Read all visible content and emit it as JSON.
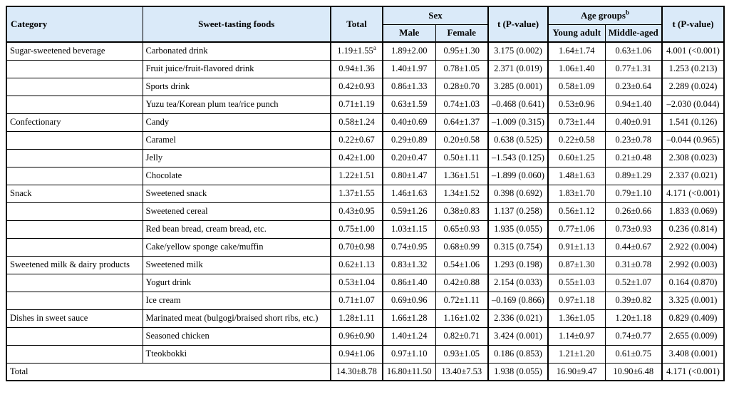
{
  "colors": {
    "header_bg": "#daeaf9",
    "border": "#000000",
    "text": "#000000"
  },
  "table": {
    "header": {
      "category": "Category",
      "foods": "Sweet-tasting foods",
      "total": "Total",
      "sex": "Sex",
      "male": "Male",
      "female": "Female",
      "t_sex": "t (P-value)",
      "age_groups": "Age groups",
      "age_groups_sup": "b",
      "young": "Young adult",
      "middle": "Middle-aged",
      "t_age": "t (P-value)"
    },
    "rows": [
      {
        "category": "Sugar-sweetened beverage",
        "food": "Carbonated drink",
        "total": "1.19±1.55",
        "total_sup": "a",
        "male": "1.89±2.00",
        "female": "0.95±1.30",
        "t_sex": "3.175 (0.002)",
        "young": "1.64±1.74",
        "middle": "0.63±1.06",
        "t_age": "4.001 (<0.001)"
      },
      {
        "category": "",
        "food": "Fruit juice/fruit-flavored drink",
        "total": "0.94±1.36",
        "male": "1.40±1.97",
        "female": "0.78±1.05",
        "t_sex": "2.371 (0.019)",
        "young": "1.06±1.40",
        "middle": "0.77±1.31",
        "t_age": "1.253 (0.213)"
      },
      {
        "category": "",
        "food": "Sports drink",
        "total": "0.42±0.93",
        "male": "0.86±1.33",
        "female": "0.28±0.70",
        "t_sex": "3.285 (0.001)",
        "young": "0.58±1.09",
        "middle": "0.23±0.64",
        "t_age": "2.289 (0.024)"
      },
      {
        "category": "",
        "food": "Yuzu tea/Korean plum tea/rice punch",
        "total": "0.71±1.19",
        "male": "0.63±1.59",
        "female": "0.74±1.03",
        "t_sex": "–0.468 (0.641)",
        "young": "0.53±0.96",
        "middle": "0.94±1.40",
        "t_age": "–2.030 (0.044)"
      },
      {
        "category": "Confectionary",
        "food": "Candy",
        "total": "0.58±1.24",
        "male": "0.40±0.69",
        "female": "0.64±1.37",
        "t_sex": "–1.009 (0.315)",
        "young": "0.73±1.44",
        "middle": "0.40±0.91",
        "t_age": "1.541 (0.126)"
      },
      {
        "category": "",
        "food": "Caramel",
        "total": "0.22±0.67",
        "male": "0.29±0.89",
        "female": "0.20±0.58",
        "t_sex": "0.638 (0.525)",
        "young": "0.22±0.58",
        "middle": "0.23±0.78",
        "t_age": "–0.044 (0.965)"
      },
      {
        "category": "",
        "food": "Jelly",
        "total": "0.42±1.00",
        "male": "0.20±0.47",
        "female": "0.50±1.11",
        "t_sex": "–1.543 (0.125)",
        "young": "0.60±1.25",
        "middle": "0.21±0.48",
        "t_age": "2.308 (0.023)"
      },
      {
        "category": "",
        "food": "Chocolate",
        "total": "1.22±1.51",
        "male": "0.80±1.47",
        "female": "1.36±1.51",
        "t_sex": "–1.899 (0.060)",
        "young": "1.48±1.63",
        "middle": "0.89±1.29",
        "t_age": "2.337 (0.021)"
      },
      {
        "category": "Snack",
        "food": "Sweetened snack",
        "total": "1.37±1.55",
        "male": "1.46±1.63",
        "female": "1.34±1.52",
        "t_sex": "0.398 (0.692)",
        "young": "1.83±1.70",
        "middle": "0.79±1.10",
        "t_age": "4.171 (<0.001)"
      },
      {
        "category": "",
        "food": "Sweetened cereal",
        "total": "0.43±0.95",
        "male": "0.59±1.26",
        "female": "0.38±0.83",
        "t_sex": "1.137 (0.258)",
        "young": "0.56±1.12",
        "middle": "0.26±0.66",
        "t_age": "1.833 (0.069)"
      },
      {
        "category": "",
        "food": "Red bean bread, cream bread, etc.",
        "total": "0.75±1.00",
        "male": "1.03±1.15",
        "female": "0.65±0.93",
        "t_sex": "1.935 (0.055)",
        "young": "0.77±1.06",
        "middle": "0.73±0.93",
        "t_age": "0.236 (0.814)"
      },
      {
        "category": "",
        "food": "Cake/yellow sponge cake/muffin",
        "total": "0.70±0.98",
        "male": "0.74±0.95",
        "female": "0.68±0.99",
        "t_sex": "0.315 (0.754)",
        "young": "0.91±1.13",
        "middle": "0.44±0.67",
        "t_age": "2.922 (0.004)"
      },
      {
        "category": "Sweetened milk & dairy products",
        "food": "Sweetened milk",
        "total": "0.62±1.13",
        "male": "0.83±1.32",
        "female": "0.54±1.06",
        "t_sex": "1.293 (0.198)",
        "young": "0.87±1.30",
        "middle": "0.31±0.78",
        "t_age": "2.992 (0.003)"
      },
      {
        "category": "",
        "food": "Yogurt drink",
        "total": "0.53±1.04",
        "male": "0.86±1.40",
        "female": "0.42±0.88",
        "t_sex": "2.154 (0.033)",
        "young": "0.55±1.03",
        "middle": "0.52±1.07",
        "t_age": "0.164 (0.870)"
      },
      {
        "category": "",
        "food": "Ice cream",
        "total": "0.71±1.07",
        "male": "0.69±0.96",
        "female": "0.72±1.11",
        "t_sex": "–0.169 (0.866)",
        "young": "0.97±1.18",
        "middle": "0.39±0.82",
        "t_age": "3.325 (0.001)"
      },
      {
        "category": "Dishes in sweet sauce",
        "food": "Marinated meat (bulgogi/braised short ribs, etc.)",
        "total": "1.28±1.11",
        "male": "1.66±1.28",
        "female": "1.16±1.02",
        "t_sex": "2.336 (0.021)",
        "young": "1.36±1.05",
        "middle": "1.20±1.18",
        "t_age": "0.829 (0.409)"
      },
      {
        "category": "",
        "food": "Seasoned chicken",
        "total": "0.96±0.90",
        "male": "1.40±1.24",
        "female": "0.82±0.71",
        "t_sex": "3.424 (0.001)",
        "young": "1.14±0.97",
        "middle": "0.74±0.77",
        "t_age": "2.655 (0.009)"
      },
      {
        "category": "",
        "food": "Tteokbokki",
        "total": "0.94±1.06",
        "male": "0.97±1.10",
        "female": "0.93±1.05",
        "t_sex": "0.186 (0.853)",
        "young": "1.21±1.20",
        "middle": "0.61±0.75",
        "t_age": "3.408 (0.001)"
      }
    ],
    "total_row": {
      "label": "Total",
      "total": "14.30±8.78",
      "male": "16.80±11.50",
      "female": "13.40±7.53",
      "t_sex": "1.938 (0.055)",
      "young": "16.90±9.47",
      "middle": "10.90±6.48",
      "t_age": "4.171 (<0.001)"
    }
  }
}
